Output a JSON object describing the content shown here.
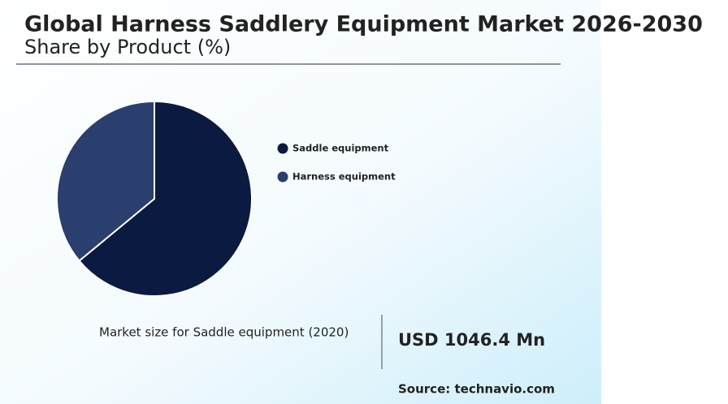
{
  "chart_data": {
    "type": "pie",
    "title": "Global Harness Saddlery Equipment Market 2026-2030",
    "subtitle": "Share by Product (%)",
    "categories": [
      "Saddle equipment",
      "Harness equipment"
    ],
    "values": [
      64,
      36
    ],
    "colors": [
      "#0a1a40",
      "#2a3f6e"
    ],
    "annotations": {
      "market_size_label": "Market size for Saddle equipment (2020)",
      "market_size_value": "USD 1046.4 Mn",
      "source": "Source: technavio.com"
    }
  }
}
